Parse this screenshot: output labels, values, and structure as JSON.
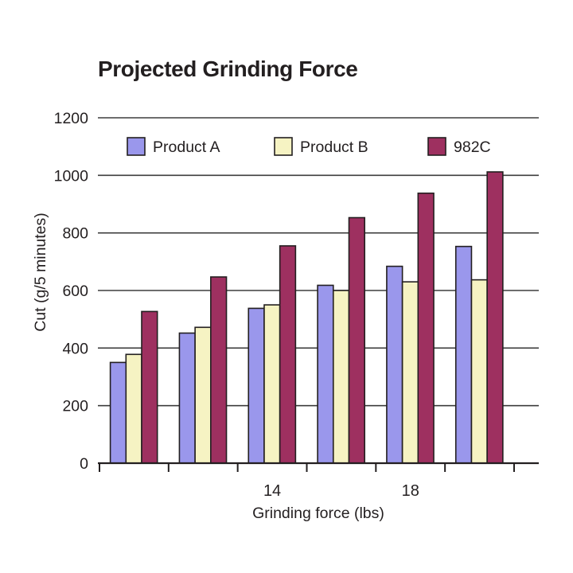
{
  "page": {
    "background": "#ffffff"
  },
  "chart_data": {
    "type": "bar",
    "title": "Projected Grinding Force",
    "xlabel": "Grinding force (lbs)",
    "ylabel": "Cut (g/5 minutes)",
    "ylim": [
      0,
      1200
    ],
    "yticks": [
      0,
      200,
      400,
      600,
      800,
      1000,
      1200
    ],
    "grid": true,
    "legend_position": "top-inside",
    "x_tick_labels": [
      "",
      "",
      "14",
      "",
      "18",
      ""
    ],
    "categories_note": "6 bar groups; only groups 3 and 5 are labeled (14 and 18 lbs)",
    "series": [
      {
        "name": "Product A",
        "color": "#9a97ec",
        "values": [
          350,
          452,
          538,
          618,
          684,
          753
        ]
      },
      {
        "name": "Product B",
        "color": "#f6f3c3",
        "values": [
          378,
          472,
          550,
          600,
          630,
          637
        ]
      },
      {
        "name": "982C",
        "color": "#9e3060",
        "values": [
          527,
          647,
          755,
          853,
          938,
          1012
        ]
      }
    ],
    "colors": {
      "outline": "#231f20",
      "gridline": "#3d3d3d",
      "axis": "#231f20",
      "text": "#231f20"
    }
  }
}
